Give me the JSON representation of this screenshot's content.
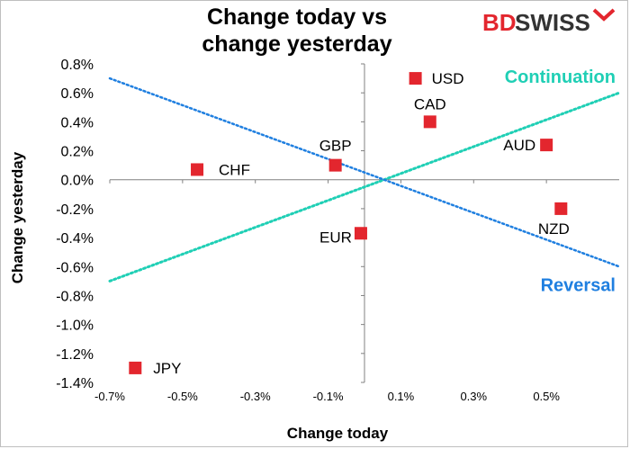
{
  "title_line1": "Change today vs",
  "title_line2": "change yesterday",
  "logo": {
    "part1": "BD",
    "part2": "SWISS",
    "accent": "#e3262e"
  },
  "chart_data": {
    "type": "scatter",
    "title": "Change today vs change yesterday",
    "xlabel": "Change today",
    "ylabel": "Change yesterday",
    "xlim": [
      -0.7,
      0.7
    ],
    "ylim": [
      -1.4,
      0.8
    ],
    "x_ticks": [
      "-0.7%",
      "-0.5%",
      "-0.3%",
      "-0.1%",
      "0.1%",
      "0.3%",
      "0.5%"
    ],
    "x_tick_values": [
      -0.7,
      -0.5,
      -0.3,
      -0.1,
      0.1,
      0.3,
      0.5
    ],
    "y_ticks": [
      "0.8%",
      "0.6%",
      "0.4%",
      "0.2%",
      "0.0%",
      "-0.2%",
      "-0.4%",
      "-0.6%",
      "-0.8%",
      "-1.0%",
      "-1.2%",
      "-1.4%"
    ],
    "y_tick_values": [
      0.8,
      0.6,
      0.4,
      0.2,
      0.0,
      -0.2,
      -0.4,
      -0.6,
      -0.8,
      -1.0,
      -1.2,
      -1.4
    ],
    "marker_color": "#e3262e",
    "points": [
      {
        "label": "USD",
        "x": 0.14,
        "y": 0.7
      },
      {
        "label": "CAD",
        "x": 0.18,
        "y": 0.4
      },
      {
        "label": "AUD",
        "x": 0.5,
        "y": 0.24
      },
      {
        "label": "GBP",
        "x": -0.08,
        "y": 0.1
      },
      {
        "label": "CHF",
        "x": -0.46,
        "y": 0.07
      },
      {
        "label": "EUR",
        "x": -0.01,
        "y": -0.37
      },
      {
        "label": "NZD",
        "x": 0.54,
        "y": -0.2
      },
      {
        "label": "JPY",
        "x": -0.63,
        "y": -1.3
      }
    ],
    "reference_lines": [
      {
        "name": "Continuation",
        "color": "#1fcfb5",
        "x": [
          -0.7,
          0.7
        ],
        "y": [
          -0.7,
          0.6
        ]
      },
      {
        "name": "Reversal",
        "color": "#1f7fe0",
        "x": [
          -0.7,
          0.7
        ],
        "y": [
          0.7,
          -0.6
        ]
      }
    ],
    "grid": false
  }
}
